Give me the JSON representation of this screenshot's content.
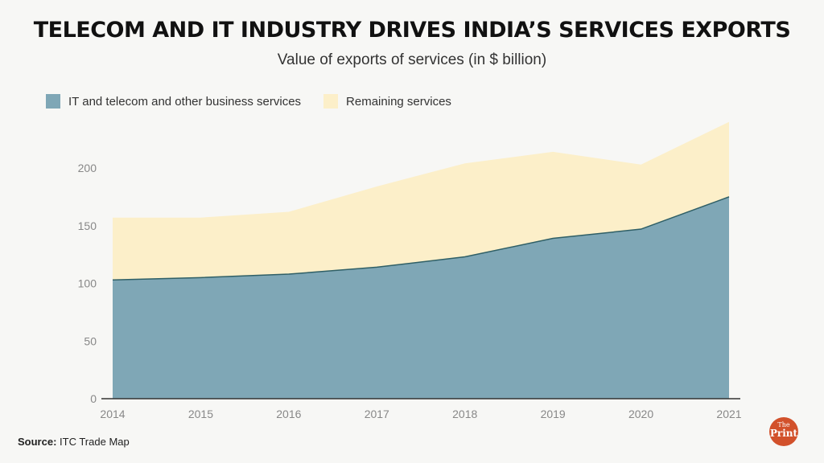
{
  "chart_data": {
    "type": "area",
    "stacked": true,
    "title": "TELECOM AND IT INDUSTRY DRIVES INDIA’S SERVICES EXPORTS",
    "subtitle": "Value of exports of services (in $ billion)",
    "x": [
      "2014",
      "2015",
      "2016",
      "2017",
      "2018",
      "2019",
      "2020",
      "2021"
    ],
    "series": [
      {
        "name": "IT and telecom and other business services",
        "color": "#7fa7b6",
        "values": [
          103,
          105,
          108,
          114,
          123,
          139,
          147,
          175
        ]
      },
      {
        "name": "Remaining services",
        "color": "#fcefc9",
        "values": [
          54,
          52,
          54,
          70,
          81,
          75,
          56,
          65
        ]
      }
    ],
    "totals": [
      157,
      157,
      162,
      184,
      204,
      214,
      203,
      240
    ],
    "yticks": [
      0,
      50,
      100,
      150,
      200
    ],
    "ylim": [
      0,
      250
    ],
    "xlabel": "",
    "ylabel": "",
    "grid": false,
    "legend_position": "top-left"
  },
  "source": {
    "label": "Source:",
    "text": "ITC Trade Map"
  },
  "logo": {
    "top": "The",
    "bottom": "Print"
  }
}
